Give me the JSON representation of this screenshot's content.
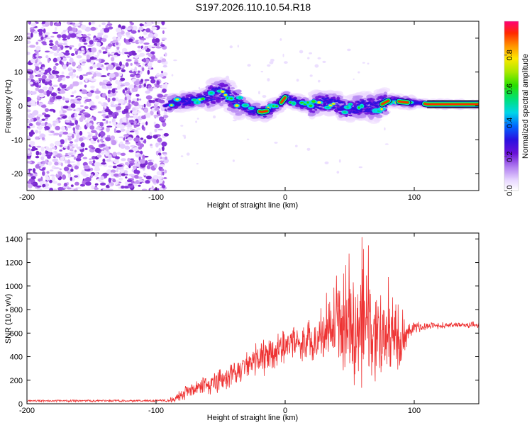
{
  "title": "S197.2026.110.10.54.R18",
  "chart_data": [
    {
      "type": "heatmap",
      "name": "spectrogram",
      "xlabel": "Height of straight line (km)",
      "ylabel": "Frequency (Hz)",
      "xlim": [
        -200,
        150
      ],
      "ylim": [
        -25,
        25
      ],
      "x_ticks": [
        -200,
        -100,
        0,
        100
      ],
      "x_tick_labels": [
        "-200",
        "-100",
        "0",
        "100"
      ],
      "y_ticks": [
        -20,
        -10,
        0,
        10,
        20
      ],
      "y_tick_labels": [
        "-20",
        "-10",
        "0",
        "10",
        "20"
      ],
      "ridge": {
        "x": [
          -93,
          -85,
          -75,
          -65,
          -55,
          -48,
          -40,
          -33,
          -27,
          -22,
          -18,
          -14,
          -8,
          -3,
          0,
          5,
          10,
          20,
          30,
          40,
          48,
          55,
          62,
          70,
          75,
          80,
          85,
          90,
          95,
          100,
          105,
          110,
          150
        ],
        "freq_hz": [
          0,
          1,
          1.5,
          2,
          3.5,
          4,
          2,
          0,
          -1,
          -1.5,
          -1.8,
          -1.5,
          0,
          1,
          2.5,
          1.5,
          1,
          0,
          1,
          0.5,
          -1,
          -0.5,
          0,
          -0.5,
          0.5,
          1.5,
          1.5,
          1.2,
          1,
          1,
          0.8,
          0.5,
          0.5
        ]
      },
      "colorbar": {
        "label": "Normalized spectral amplitude",
        "range": [
          0,
          1
        ],
        "ticks": [
          0.0,
          0.2,
          0.4,
          0.6,
          0.8
        ],
        "tick_labels": [
          "0.0",
          "0.2",
          "0.4",
          "0.6",
          "0.8"
        ]
      }
    },
    {
      "type": "line",
      "name": "snr",
      "xlabel": "Height of straight line (km)",
      "ylabel": "SNR (10 * v/v)",
      "xlim": [
        -200,
        150
      ],
      "ylim": [
        0,
        1450
      ],
      "x_ticks": [
        -200,
        -100,
        0,
        100
      ],
      "x_tick_labels": [
        "-200",
        "-100",
        "0",
        "100"
      ],
      "y_ticks": [
        0,
        200,
        400,
        600,
        800,
        1000,
        1200,
        1400
      ],
      "y_tick_labels": [
        "0",
        "200",
        "400",
        "600",
        "800",
        "1000",
        "1200",
        "1400"
      ],
      "series": [
        {
          "name": "SNR",
          "color": "#ee3333",
          "envelope_x": [
            -200,
            -110,
            -90,
            -85,
            -80,
            -70,
            -60,
            -50,
            -40,
            -30,
            -20,
            -10,
            0,
            10,
            20,
            30,
            35,
            40,
            45,
            50,
            55,
            60,
            65,
            70,
            75,
            80,
            85,
            90,
            95,
            100,
            110,
            120,
            130,
            140,
            150
          ],
          "envelope_mean": [
            25,
            25,
            28,
            40,
            80,
            120,
            160,
            210,
            260,
            320,
            380,
            440,
            500,
            520,
            540,
            580,
            600,
            620,
            640,
            660,
            660,
            640,
            620,
            600,
            580,
            560,
            540,
            520,
            600,
            650,
            660,
            665,
            670,
            670,
            670
          ],
          "envelope_amp": [
            10,
            10,
            15,
            40,
            70,
            80,
            100,
            120,
            140,
            160,
            180,
            200,
            180,
            180,
            200,
            250,
            300,
            400,
            500,
            560,
            600,
            600,
            560,
            500,
            450,
            400,
            350,
            250,
            120,
            60,
            40,
            30,
            30,
            30,
            30
          ]
        }
      ]
    }
  ]
}
